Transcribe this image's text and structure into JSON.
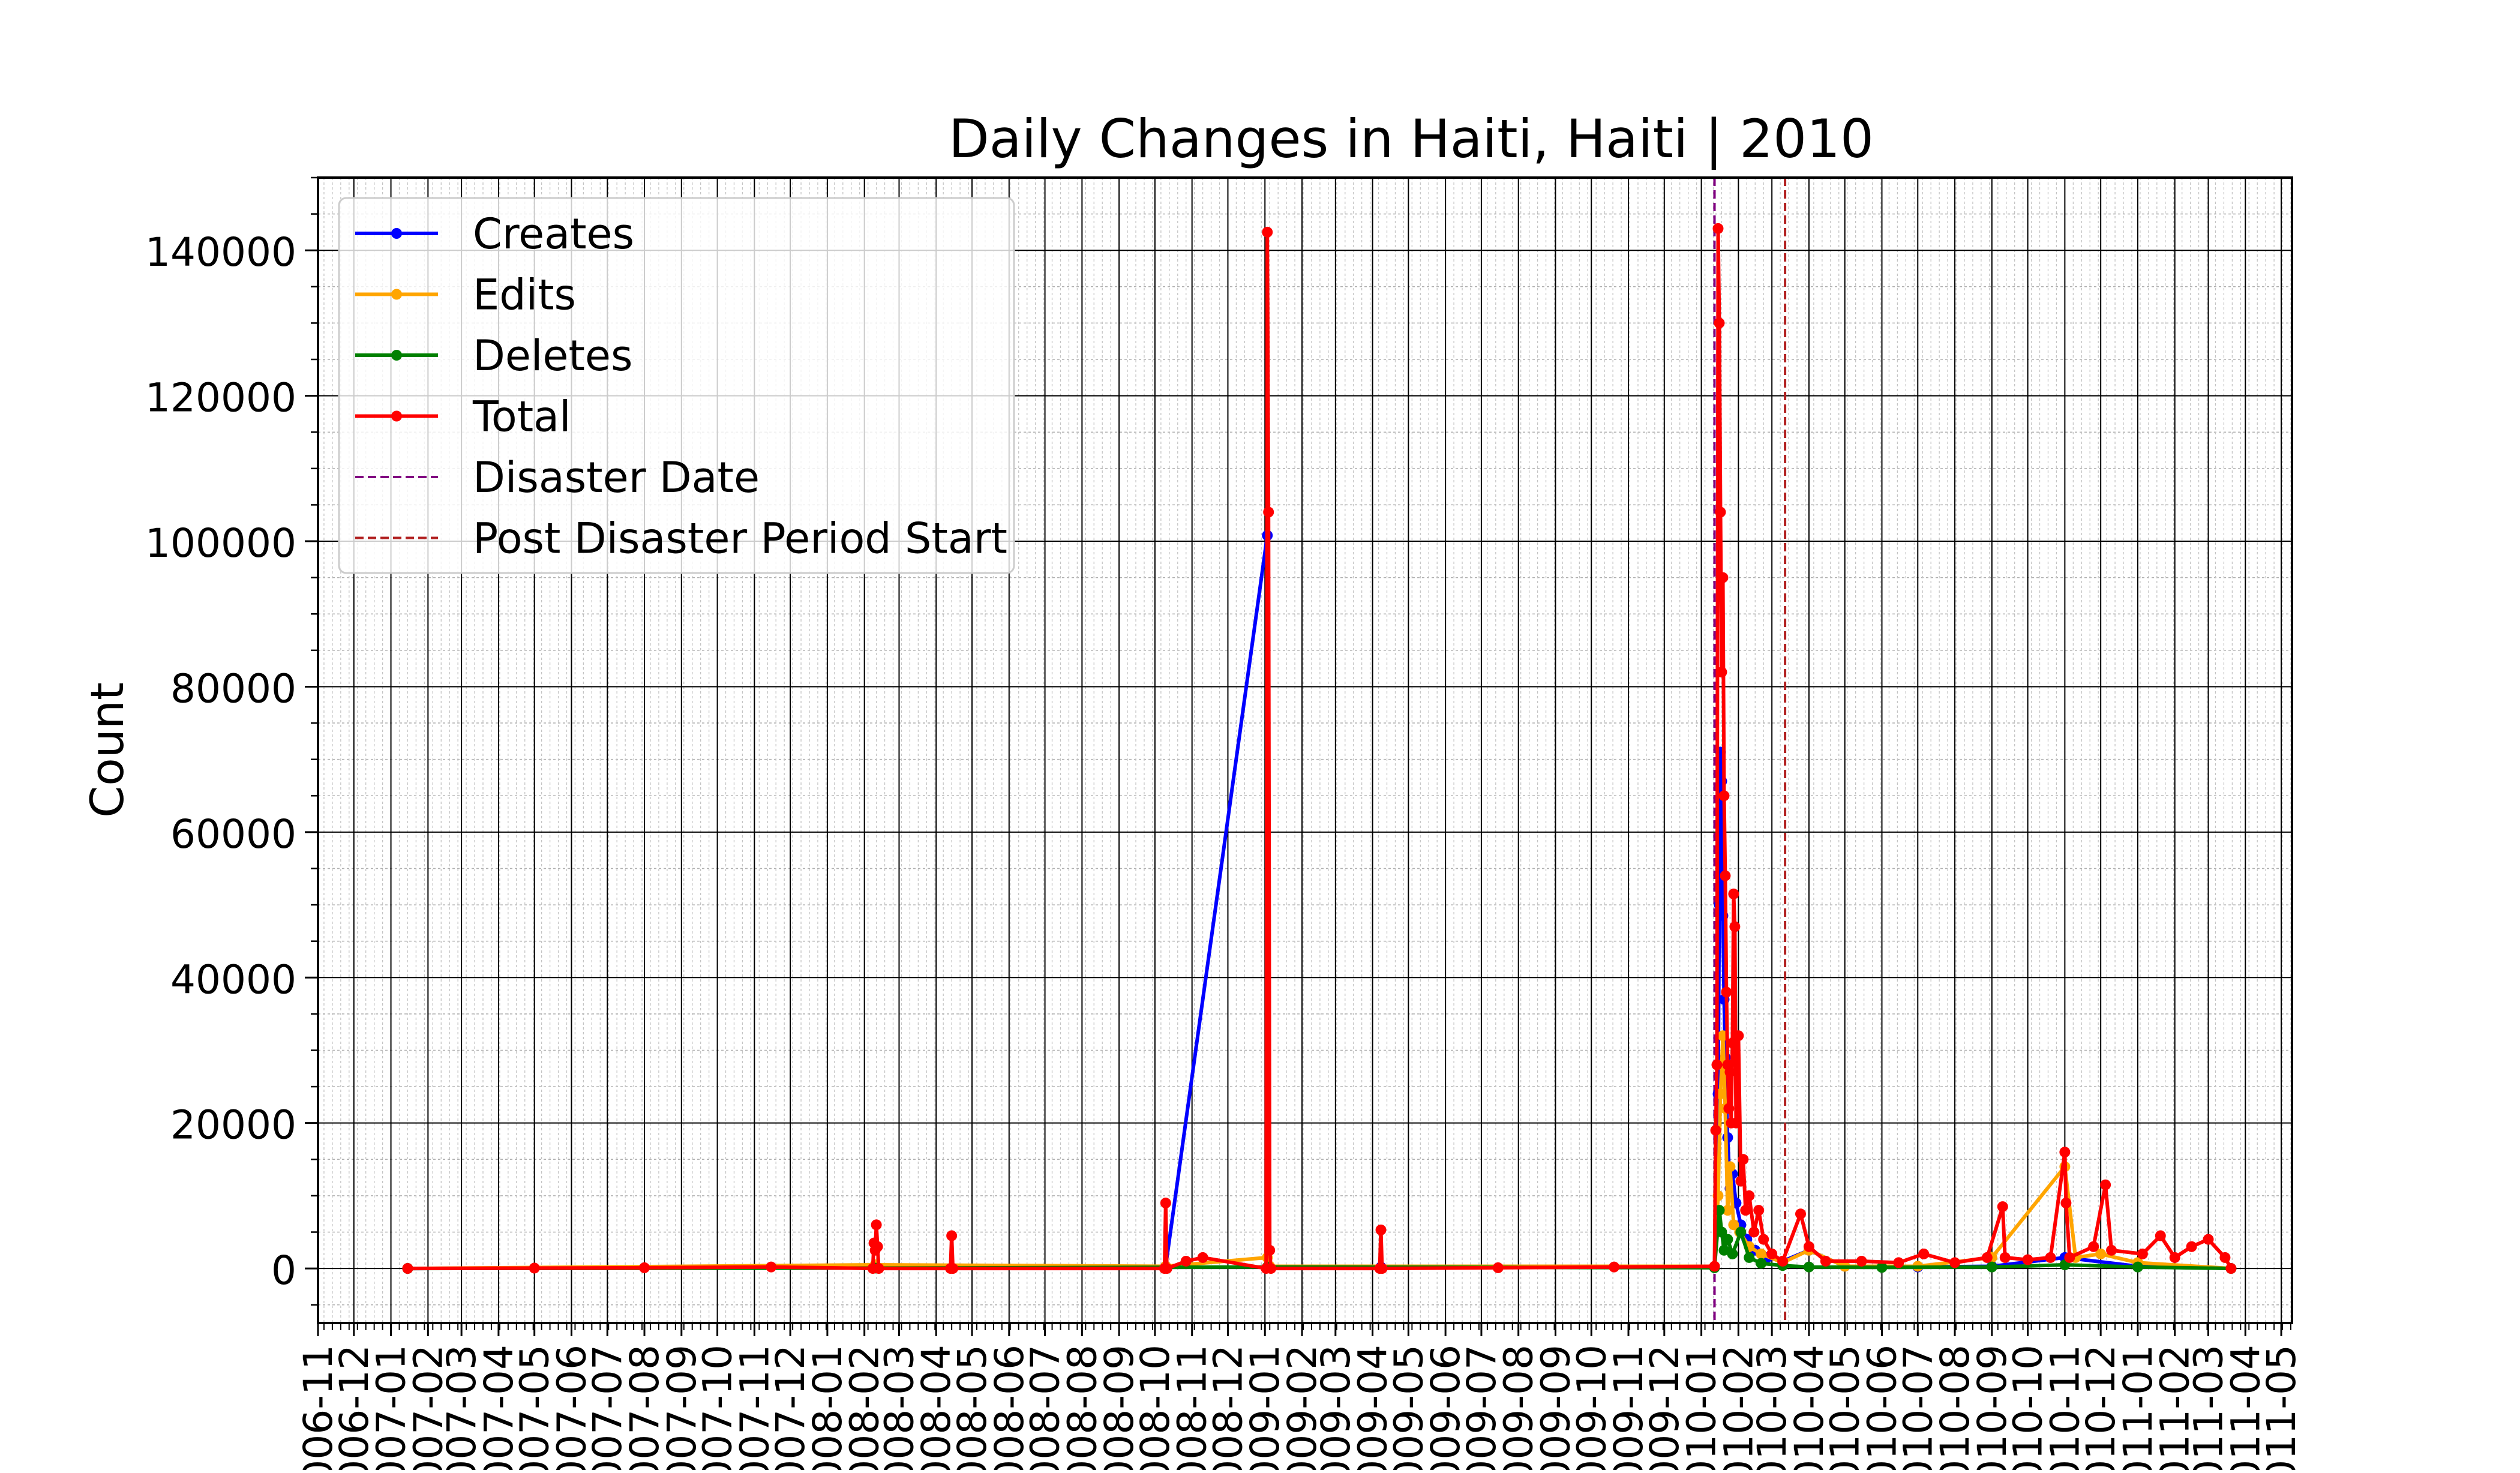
{
  "chart_data": {
    "type": "line",
    "title": "Daily Changes in Haiti, Haiti | 2010",
    "xlabel": "",
    "ylabel": "Count",
    "x_type": "date",
    "xlim": [
      "2006-11-01",
      "2011-05-10"
    ],
    "ylim": [
      -7500,
      150000
    ],
    "yticks": [
      0,
      20000,
      40000,
      60000,
      80000,
      100000,
      120000,
      140000
    ],
    "xticks": [
      "2006-11",
      "2006-12",
      "2007-01",
      "2007-02",
      "2007-03",
      "2007-04",
      "2007-05",
      "2007-06",
      "2007-07",
      "2007-08",
      "2007-09",
      "2007-10",
      "2007-11",
      "2007-12",
      "2008-01",
      "2008-02",
      "2008-03",
      "2008-04",
      "2008-05",
      "2008-06",
      "2008-07",
      "2008-08",
      "2008-09",
      "2008-10",
      "2008-11",
      "2008-12",
      "2009-01",
      "2009-02",
      "2009-03",
      "2009-04",
      "2009-05",
      "2009-06",
      "2009-07",
      "2009-08",
      "2009-09",
      "2009-10",
      "2009-11",
      "2009-12",
      "2010-01",
      "2010-02",
      "2010-03",
      "2010-04",
      "2010-05",
      "2010-06",
      "2010-07",
      "2010-08",
      "2010-09",
      "2010-10",
      "2010-11",
      "2010-12",
      "2011-01",
      "2011-02",
      "2011-03",
      "2011-04",
      "2011-05"
    ],
    "grid": true,
    "legend_position": "upper-left",
    "series": [
      {
        "name": "Creates",
        "color": "#0000ff",
        "points": [
          [
            "2007-01-15",
            0
          ],
          [
            "2008-02-10",
            200
          ],
          [
            "2008-10-10",
            300
          ],
          [
            "2009-01-03",
            100800
          ],
          [
            "2009-01-05",
            100
          ],
          [
            "2009-04-08",
            200
          ],
          [
            "2010-01-12",
            200
          ],
          [
            "2010-01-15",
            24000
          ],
          [
            "2010-01-16",
            50000
          ],
          [
            "2010-01-17",
            71000
          ],
          [
            "2010-01-18",
            67000
          ],
          [
            "2010-01-19",
            48500
          ],
          [
            "2010-01-20",
            37000
          ],
          [
            "2010-01-21",
            29000
          ],
          [
            "2010-01-23",
            18000
          ],
          [
            "2010-01-25",
            11000
          ],
          [
            "2010-01-27",
            13000
          ],
          [
            "2010-01-30",
            9000
          ],
          [
            "2010-02-03",
            6000
          ],
          [
            "2010-02-08",
            4000
          ],
          [
            "2010-02-15",
            2500
          ],
          [
            "2010-02-25",
            1500
          ],
          [
            "2010-03-10",
            1000
          ],
          [
            "2010-04-01",
            2500
          ],
          [
            "2010-05-01",
            300
          ],
          [
            "2010-07-01",
            200
          ],
          [
            "2010-09-01",
            300
          ],
          [
            "2010-11-01",
            1500
          ],
          [
            "2011-01-01",
            300
          ],
          [
            "2011-03-20",
            0
          ]
        ]
      },
      {
        "name": "Edits",
        "color": "#ffa500",
        "points": [
          [
            "2007-01-15",
            0
          ],
          [
            "2008-02-10",
            500
          ],
          [
            "2008-10-10",
            300
          ],
          [
            "2009-01-03",
            1500
          ],
          [
            "2009-01-05",
            300
          ],
          [
            "2010-01-12",
            300
          ],
          [
            "2010-01-15",
            10000
          ],
          [
            "2010-01-17",
            24000
          ],
          [
            "2010-01-19",
            32000
          ],
          [
            "2010-01-21",
            22000
          ],
          [
            "2010-01-23",
            8000
          ],
          [
            "2010-01-25",
            14000
          ],
          [
            "2010-01-28",
            6000
          ],
          [
            "2010-02-02",
            5000
          ],
          [
            "2010-02-10",
            3000
          ],
          [
            "2010-02-20",
            2000
          ],
          [
            "2010-03-10",
            800
          ],
          [
            "2010-04-01",
            2500
          ],
          [
            "2010-05-01",
            300
          ],
          [
            "2010-07-01",
            300
          ],
          [
            "2010-09-01",
            1500
          ],
          [
            "2010-11-01",
            14000
          ],
          [
            "2010-11-10",
            1500
          ],
          [
            "2010-12-01",
            2000
          ],
          [
            "2011-01-01",
            800
          ],
          [
            "2011-03-20",
            0
          ]
        ]
      },
      {
        "name": "Deletes",
        "color": "#008000",
        "points": [
          [
            "2007-01-15",
            0
          ],
          [
            "2008-02-10",
            50
          ],
          [
            "2009-01-03",
            200
          ],
          [
            "2010-01-12",
            100
          ],
          [
            "2010-01-16",
            8000
          ],
          [
            "2010-01-18",
            5000
          ],
          [
            "2010-01-20",
            2500
          ],
          [
            "2010-01-23",
            4000
          ],
          [
            "2010-01-27",
            2000
          ],
          [
            "2010-02-03",
            5000
          ],
          [
            "2010-02-10",
            1500
          ],
          [
            "2010-02-20",
            700
          ],
          [
            "2010-03-10",
            400
          ],
          [
            "2010-04-01",
            200
          ],
          [
            "2010-06-01",
            150
          ],
          [
            "2010-09-01",
            200
          ],
          [
            "2010-11-01",
            500
          ],
          [
            "2011-01-01",
            200
          ],
          [
            "2011-03-20",
            0
          ]
        ]
      },
      {
        "name": "Total",
        "color": "#ff0000",
        "points": [
          [
            "2007-01-15",
            0
          ],
          [
            "2007-05-01",
            50
          ],
          [
            "2007-08-01",
            100
          ],
          [
            "2007-11-15",
            200
          ],
          [
            "2008-02-08",
            0
          ],
          [
            "2008-02-09",
            3500
          ],
          [
            "2008-02-10",
            2500
          ],
          [
            "2008-02-11",
            6000
          ],
          [
            "2008-02-12",
            3000
          ],
          [
            "2008-02-13",
            0
          ],
          [
            "2008-04-13",
            0
          ],
          [
            "2008-04-14",
            4500
          ],
          [
            "2008-04-15",
            0
          ],
          [
            "2008-10-09",
            0
          ],
          [
            "2008-10-10",
            9000
          ],
          [
            "2008-10-11",
            0
          ],
          [
            "2008-10-27",
            1000
          ],
          [
            "2008-11-10",
            1500
          ],
          [
            "2009-01-02",
            0
          ],
          [
            "2009-01-03",
            142500
          ],
          [
            "2009-01-04",
            104000
          ],
          [
            "2009-01-05",
            2500
          ],
          [
            "2009-01-06",
            0
          ],
          [
            "2009-04-07",
            0
          ],
          [
            "2009-04-08",
            5300
          ],
          [
            "2009-04-09",
            0
          ],
          [
            "2009-07-15",
            100
          ],
          [
            "2009-10-20",
            200
          ],
          [
            "2010-01-12",
            300
          ],
          [
            "2010-01-13",
            19000
          ],
          [
            "2010-01-14",
            28000
          ],
          [
            "2010-01-15",
            143000
          ],
          [
            "2010-01-16",
            130000
          ],
          [
            "2010-01-17",
            104000
          ],
          [
            "2010-01-18",
            82000
          ],
          [
            "2010-01-19",
            95000
          ],
          [
            "2010-01-20",
            65000
          ],
          [
            "2010-01-21",
            54000
          ],
          [
            "2010-01-22",
            38000
          ],
          [
            "2010-01-23",
            28000
          ],
          [
            "2010-01-24",
            22000
          ],
          [
            "2010-01-25",
            27000
          ],
          [
            "2010-01-26",
            20000
          ],
          [
            "2010-01-27",
            31000
          ],
          [
            "2010-01-28",
            51500
          ],
          [
            "2010-01-29",
            47000
          ],
          [
            "2010-01-30",
            20000
          ],
          [
            "2010-02-01",
            32000
          ],
          [
            "2010-02-03",
            12000
          ],
          [
            "2010-02-05",
            15000
          ],
          [
            "2010-02-07",
            8000
          ],
          [
            "2010-02-10",
            10000
          ],
          [
            "2010-02-14",
            5000
          ],
          [
            "2010-02-18",
            8000
          ],
          [
            "2010-02-22",
            4000
          ],
          [
            "2010-03-01",
            2000
          ],
          [
            "2010-03-10",
            1000
          ],
          [
            "2010-03-25",
            7500
          ],
          [
            "2010-04-01",
            3000
          ],
          [
            "2010-04-15",
            1000
          ],
          [
            "2010-05-15",
            1000
          ],
          [
            "2010-06-15",
            800
          ],
          [
            "2010-07-06",
            2000
          ],
          [
            "2010-08-01",
            800
          ],
          [
            "2010-08-28",
            1500
          ],
          [
            "2010-09-10",
            8500
          ],
          [
            "2010-09-12",
            1500
          ],
          [
            "2010-10-01",
            1200
          ],
          [
            "2010-10-20",
            1500
          ],
          [
            "2010-11-01",
            16000
          ],
          [
            "2010-11-02",
            9000
          ],
          [
            "2010-11-05",
            1500
          ],
          [
            "2010-11-25",
            3000
          ],
          [
            "2010-12-05",
            11500
          ],
          [
            "2010-12-10",
            2500
          ],
          [
            "2011-01-05",
            2000
          ],
          [
            "2011-01-20",
            4500
          ],
          [
            "2011-02-01",
            1500
          ],
          [
            "2011-02-15",
            3000
          ],
          [
            "2011-03-01",
            4000
          ],
          [
            "2011-03-15",
            1500
          ],
          [
            "2011-03-20",
            0
          ]
        ]
      }
    ],
    "reference_lines": [
      {
        "name": "Disaster Date",
        "x": "2010-01-12",
        "color": "#800080",
        "style": "dashed"
      },
      {
        "name": "Post Disaster Period Start",
        "x": "2010-03-12",
        "color": "#b22222",
        "style": "dashed"
      }
    ]
  }
}
